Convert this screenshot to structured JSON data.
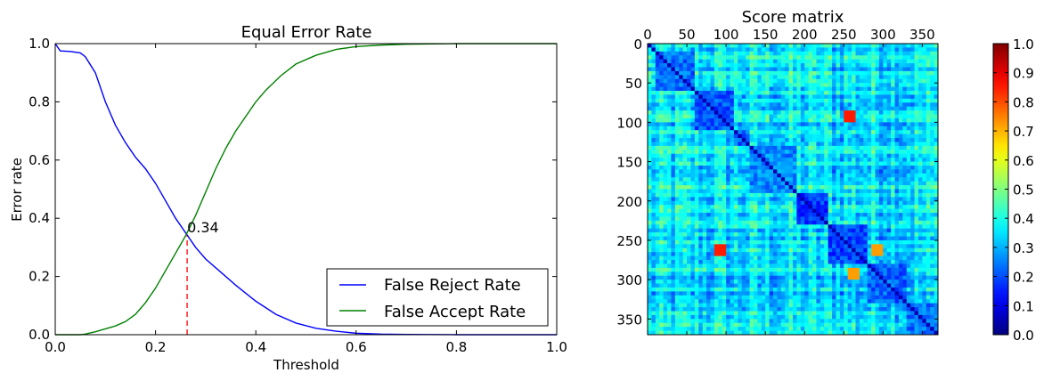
{
  "chart_data": [
    {
      "type": "line",
      "title": "Equal Error Rate",
      "xlabel": "Threshold",
      "ylabel": "Error rate",
      "xlim": [
        0.0,
        1.0
      ],
      "ylim": [
        0.0,
        1.0
      ],
      "xticks": [
        "0.0",
        "0.2",
        "0.4",
        "0.6",
        "0.8",
        "1.0"
      ],
      "yticks": [
        "0.0",
        "0.2",
        "0.4",
        "0.6",
        "0.8",
        "1.0"
      ],
      "grid": false,
      "legend_position": "lower-right",
      "series": [
        {
          "name": "False Reject Rate",
          "color": "#0000ff",
          "x": [
            0.0,
            0.01,
            0.03,
            0.05,
            0.06,
            0.08,
            0.1,
            0.12,
            0.14,
            0.16,
            0.18,
            0.2,
            0.22,
            0.24,
            0.26,
            0.28,
            0.3,
            0.33,
            0.36,
            0.4,
            0.44,
            0.48,
            0.52,
            0.56,
            0.6,
            0.65,
            0.7,
            0.8,
            0.9,
            1.0
          ],
          "y": [
            1.0,
            0.975,
            0.973,
            0.968,
            0.955,
            0.9,
            0.8,
            0.72,
            0.66,
            0.61,
            0.57,
            0.52,
            0.46,
            0.4,
            0.35,
            0.3,
            0.26,
            0.215,
            0.17,
            0.115,
            0.07,
            0.04,
            0.022,
            0.012,
            0.005,
            0.002,
            0.001,
            0.0,
            0.0,
            0.0
          ]
        },
        {
          "name": "False Accept Rate",
          "color": "#008000",
          "x": [
            0.0,
            0.05,
            0.06,
            0.08,
            0.1,
            0.12,
            0.14,
            0.16,
            0.18,
            0.2,
            0.22,
            0.24,
            0.26,
            0.28,
            0.3,
            0.32,
            0.34,
            0.36,
            0.38,
            0.4,
            0.42,
            0.45,
            0.48,
            0.52,
            0.56,
            0.6,
            0.65,
            0.7,
            0.8,
            0.9,
            1.0
          ],
          "y": [
            0.0,
            0.0,
            0.002,
            0.01,
            0.02,
            0.03,
            0.045,
            0.07,
            0.11,
            0.16,
            0.22,
            0.28,
            0.34,
            0.41,
            0.49,
            0.57,
            0.64,
            0.7,
            0.75,
            0.8,
            0.84,
            0.89,
            0.93,
            0.96,
            0.98,
            0.99,
            0.995,
            0.998,
            1.0,
            1.0,
            1.0
          ]
        }
      ],
      "annotations": [
        {
          "text": "0.34",
          "x": 0.263,
          "y": 0.34,
          "style": "dashed",
          "color": "#ff0000"
        }
      ]
    },
    {
      "type": "heatmap",
      "title": "Score matrix",
      "xlim": [
        0,
        370
      ],
      "ylim": [
        0,
        370
      ],
      "xticks": [
        "0",
        "50",
        "100",
        "150",
        "200",
        "250",
        "300",
        "350"
      ],
      "yticks": [
        "0",
        "50",
        "100",
        "150",
        "200",
        "250",
        "300",
        "350"
      ],
      "x_axis_position": "top",
      "matrix_size": 370,
      "blocks": [
        {
          "start": 10,
          "end": 60,
          "diagonal": 0.1,
          "within": 0.17
        },
        {
          "start": 60,
          "end": 110,
          "diagonal": 0.1,
          "within": 0.15
        },
        {
          "start": 110,
          "end": 130,
          "diagonal": 0.1,
          "within": 0.16
        },
        {
          "start": 130,
          "end": 190,
          "diagonal": 0.1,
          "within": 0.2
        },
        {
          "start": 190,
          "end": 230,
          "diagonal": 0.1,
          "within": 0.12
        },
        {
          "start": 230,
          "end": 280,
          "diagonal": 0.1,
          "within": 0.13
        },
        {
          "start": 280,
          "end": 330,
          "diagonal": 0.1,
          "within": 0.16
        },
        {
          "start": 330,
          "end": 370,
          "diagonal": 0.1,
          "within": 0.18
        }
      ],
      "between_block_range": [
        0.15,
        0.5
      ],
      "hotspots": [
        {
          "row": 258,
          "col": 90,
          "value": 0.85
        },
        {
          "row": 90,
          "col": 255,
          "value": 0.85
        },
        {
          "row": 290,
          "col": 262,
          "value": 0.72
        },
        {
          "row": 262,
          "col": 290,
          "value": 0.72
        }
      ],
      "colorbar": {
        "colormap": "jet",
        "range": [
          0.0,
          1.0
        ],
        "ticks": [
          "0.0",
          "0.1",
          "0.2",
          "0.3",
          "0.4",
          "0.5",
          "0.6",
          "0.7",
          "0.8",
          "0.9",
          "1.0"
        ]
      }
    }
  ]
}
